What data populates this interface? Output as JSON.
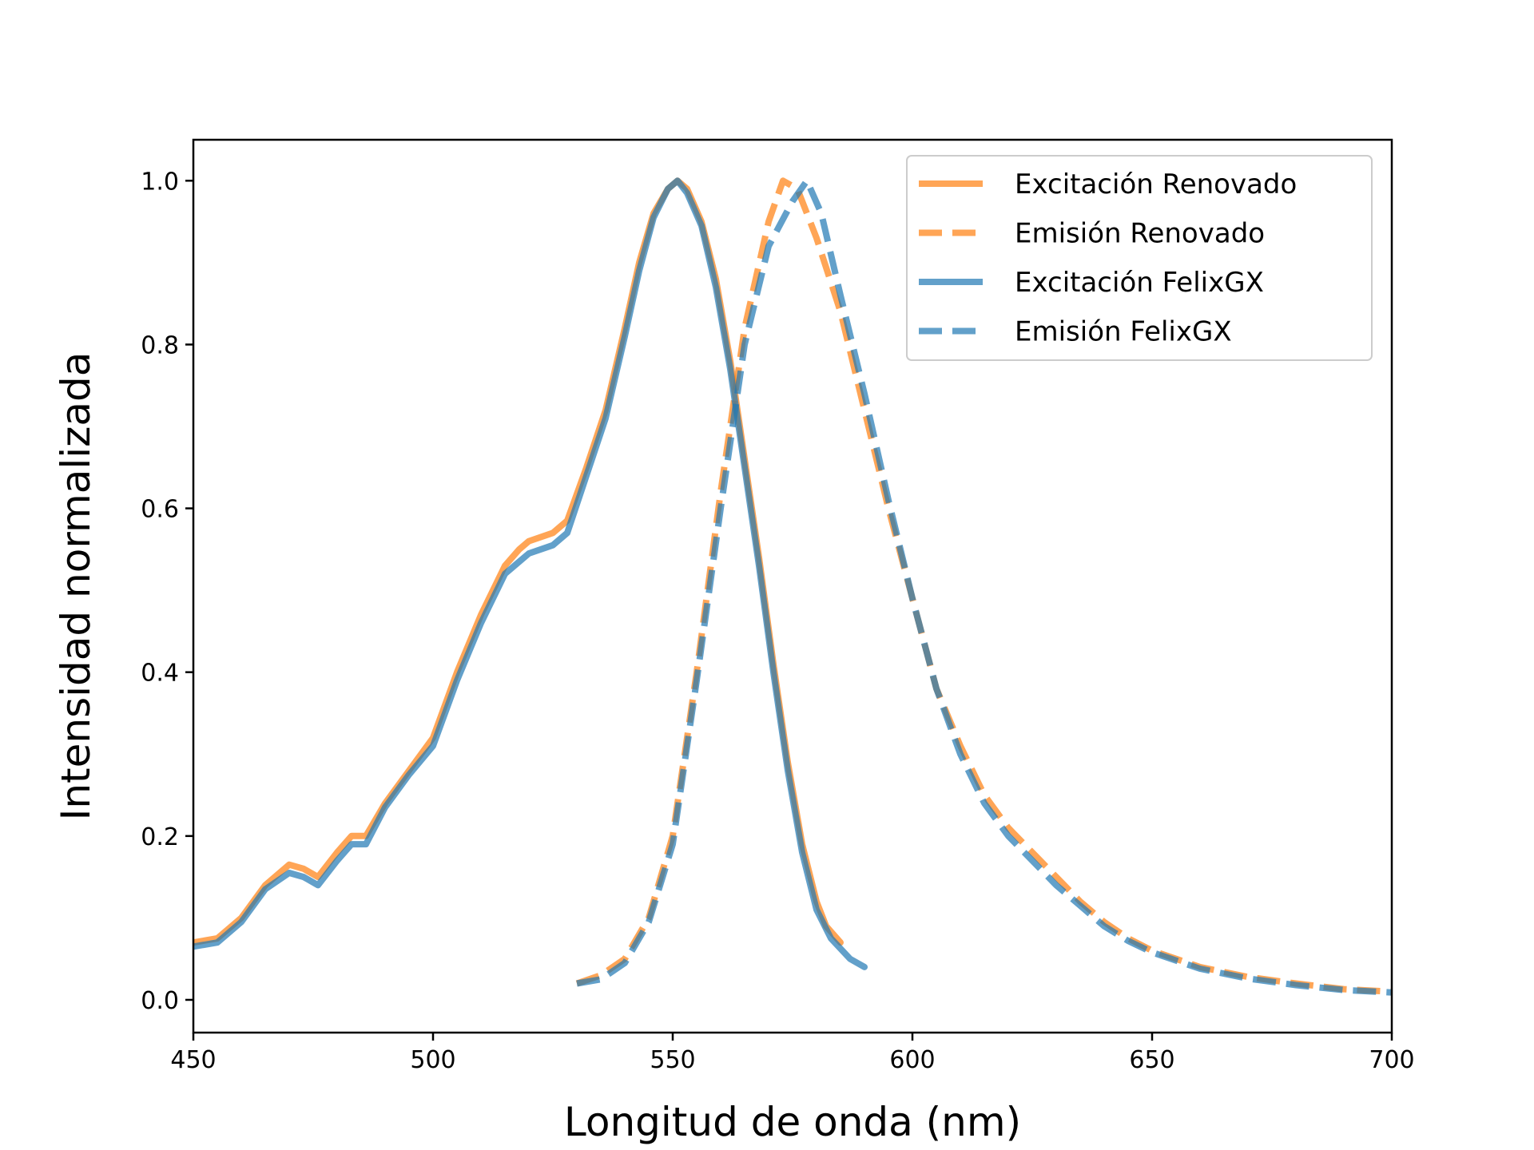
{
  "chart_data": {
    "type": "line",
    "title": "",
    "xlabel": "Longitud de onda (nm)",
    "ylabel": "Intensidad normalizada",
    "xlim": [
      450,
      700
    ],
    "ylim": [
      -0.04,
      1.05
    ],
    "xticks": [
      450,
      500,
      550,
      600,
      650,
      700
    ],
    "yticks": [
      0.0,
      0.2,
      0.4,
      0.6,
      0.8,
      1.0
    ],
    "xtick_labels": [
      "450",
      "500",
      "550",
      "600",
      "650",
      "700"
    ],
    "ytick_labels": [
      "0.0",
      "0.2",
      "0.4",
      "0.6",
      "0.8",
      "1.0"
    ],
    "grid": false,
    "legend_position": "top-right",
    "series": [
      {
        "name": "Excitación Renovado",
        "color": "#ff7f0e",
        "style": "solid",
        "points": [
          [
            450,
            0.07
          ],
          [
            455,
            0.075
          ],
          [
            460,
            0.1
          ],
          [
            465,
            0.14
          ],
          [
            470,
            0.165
          ],
          [
            473,
            0.16
          ],
          [
            476,
            0.15
          ],
          [
            480,
            0.18
          ],
          [
            483,
            0.2
          ],
          [
            486,
            0.2
          ],
          [
            490,
            0.24
          ],
          [
            495,
            0.28
          ],
          [
            500,
            0.32
          ],
          [
            505,
            0.4
          ],
          [
            510,
            0.47
          ],
          [
            515,
            0.53
          ],
          [
            518,
            0.55
          ],
          [
            520,
            0.56
          ],
          [
            525,
            0.57
          ],
          [
            528,
            0.585
          ],
          [
            532,
            0.65
          ],
          [
            536,
            0.72
          ],
          [
            540,
            0.82
          ],
          [
            543,
            0.9
          ],
          [
            546,
            0.96
          ],
          [
            549,
            0.99
          ],
          [
            551,
            1.0
          ],
          [
            553,
            0.99
          ],
          [
            556,
            0.95
          ],
          [
            559,
            0.88
          ],
          [
            562,
            0.78
          ],
          [
            565,
            0.66
          ],
          [
            568,
            0.54
          ],
          [
            571,
            0.41
          ],
          [
            574,
            0.29
          ],
          [
            577,
            0.19
          ],
          [
            580,
            0.12
          ],
          [
            582,
            0.09
          ],
          [
            585,
            0.07
          ]
        ]
      },
      {
        "name": "Emisión Renovado",
        "color": "#ff7f0e",
        "style": "dashed",
        "points": [
          [
            530,
            0.02
          ],
          [
            535,
            0.03
          ],
          [
            540,
            0.05
          ],
          [
            545,
            0.1
          ],
          [
            550,
            0.2
          ],
          [
            555,
            0.4
          ],
          [
            560,
            0.62
          ],
          [
            565,
            0.82
          ],
          [
            570,
            0.95
          ],
          [
            573,
            1.0
          ],
          [
            576,
            0.99
          ],
          [
            580,
            0.93
          ],
          [
            585,
            0.84
          ],
          [
            590,
            0.72
          ],
          [
            595,
            0.6
          ],
          [
            600,
            0.49
          ],
          [
            605,
            0.38
          ],
          [
            610,
            0.31
          ],
          [
            615,
            0.25
          ],
          [
            620,
            0.21
          ],
          [
            625,
            0.18
          ],
          [
            630,
            0.15
          ],
          [
            635,
            0.12
          ],
          [
            640,
            0.095
          ],
          [
            645,
            0.075
          ],
          [
            650,
            0.06
          ],
          [
            660,
            0.04
          ],
          [
            670,
            0.028
          ],
          [
            680,
            0.02
          ],
          [
            690,
            0.013
          ],
          [
            700,
            0.01
          ]
        ]
      },
      {
        "name": "Excitación FelixGX",
        "color": "#1f77b4",
        "style": "solid",
        "points": [
          [
            450,
            0.065
          ],
          [
            455,
            0.07
          ],
          [
            460,
            0.095
          ],
          [
            465,
            0.135
          ],
          [
            470,
            0.155
          ],
          [
            473,
            0.15
          ],
          [
            476,
            0.14
          ],
          [
            480,
            0.17
          ],
          [
            483,
            0.19
          ],
          [
            486,
            0.19
          ],
          [
            490,
            0.235
          ],
          [
            495,
            0.275
          ],
          [
            500,
            0.31
          ],
          [
            505,
            0.39
          ],
          [
            510,
            0.46
          ],
          [
            515,
            0.52
          ],
          [
            518,
            0.535
          ],
          [
            520,
            0.545
          ],
          [
            525,
            0.555
          ],
          [
            528,
            0.57
          ],
          [
            532,
            0.64
          ],
          [
            536,
            0.71
          ],
          [
            540,
            0.81
          ],
          [
            543,
            0.89
          ],
          [
            546,
            0.955
          ],
          [
            549,
            0.99
          ],
          [
            551,
            1.0
          ],
          [
            553,
            0.985
          ],
          [
            556,
            0.945
          ],
          [
            559,
            0.87
          ],
          [
            562,
            0.77
          ],
          [
            565,
            0.65
          ],
          [
            568,
            0.53
          ],
          [
            571,
            0.4
          ],
          [
            574,
            0.28
          ],
          [
            577,
            0.18
          ],
          [
            580,
            0.11
          ],
          [
            583,
            0.075
          ],
          [
            587,
            0.05
          ],
          [
            590,
            0.04
          ]
        ]
      },
      {
        "name": "Emisión FelixGX",
        "color": "#1f77b4",
        "style": "dashed",
        "points": [
          [
            530,
            0.02
          ],
          [
            535,
            0.025
          ],
          [
            540,
            0.045
          ],
          [
            545,
            0.095
          ],
          [
            550,
            0.19
          ],
          [
            555,
            0.39
          ],
          [
            560,
            0.6
          ],
          [
            565,
            0.8
          ],
          [
            570,
            0.92
          ],
          [
            575,
            0.975
          ],
          [
            578,
            1.0
          ],
          [
            581,
            0.96
          ],
          [
            585,
            0.86
          ],
          [
            590,
            0.74
          ],
          [
            595,
            0.61
          ],
          [
            600,
            0.49
          ],
          [
            605,
            0.38
          ],
          [
            610,
            0.3
          ],
          [
            615,
            0.24
          ],
          [
            620,
            0.2
          ],
          [
            625,
            0.17
          ],
          [
            630,
            0.14
          ],
          [
            635,
            0.115
          ],
          [
            640,
            0.09
          ],
          [
            645,
            0.072
          ],
          [
            650,
            0.058
          ],
          [
            660,
            0.038
          ],
          [
            670,
            0.026
          ],
          [
            680,
            0.018
          ],
          [
            690,
            0.012
          ],
          [
            700,
            0.009
          ]
        ]
      }
    ]
  }
}
